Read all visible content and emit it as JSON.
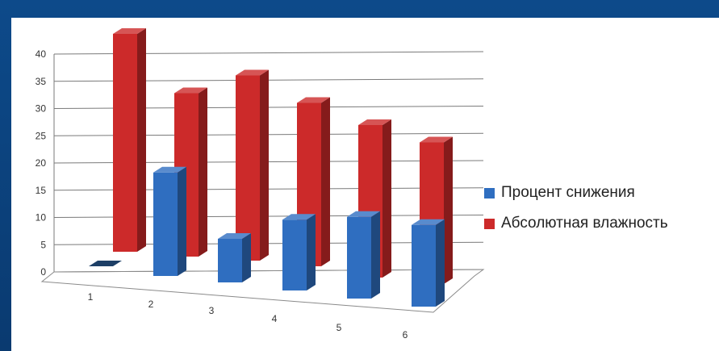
{
  "chart_data": {
    "type": "bar",
    "title": "",
    "xlabel": "",
    "ylabel": "",
    "categories": [
      "1",
      "2",
      "3",
      "4",
      "5",
      "6"
    ],
    "series": [
      {
        "name": "Процент снижения",
        "values": [
          0,
          19,
          8,
          13,
          15,
          15
        ],
        "color": "#2f6ec0"
      },
      {
        "name": "Абсолютная влажность",
        "values": [
          40,
          30,
          34,
          30,
          28,
          26
        ],
        "color": "#cc2a2a"
      }
    ],
    "ylim": [
      0,
      40
    ],
    "yticks": [
      0,
      5,
      10,
      15,
      20,
      25,
      30,
      35,
      40
    ],
    "grid": true,
    "legend_position": "right"
  }
}
